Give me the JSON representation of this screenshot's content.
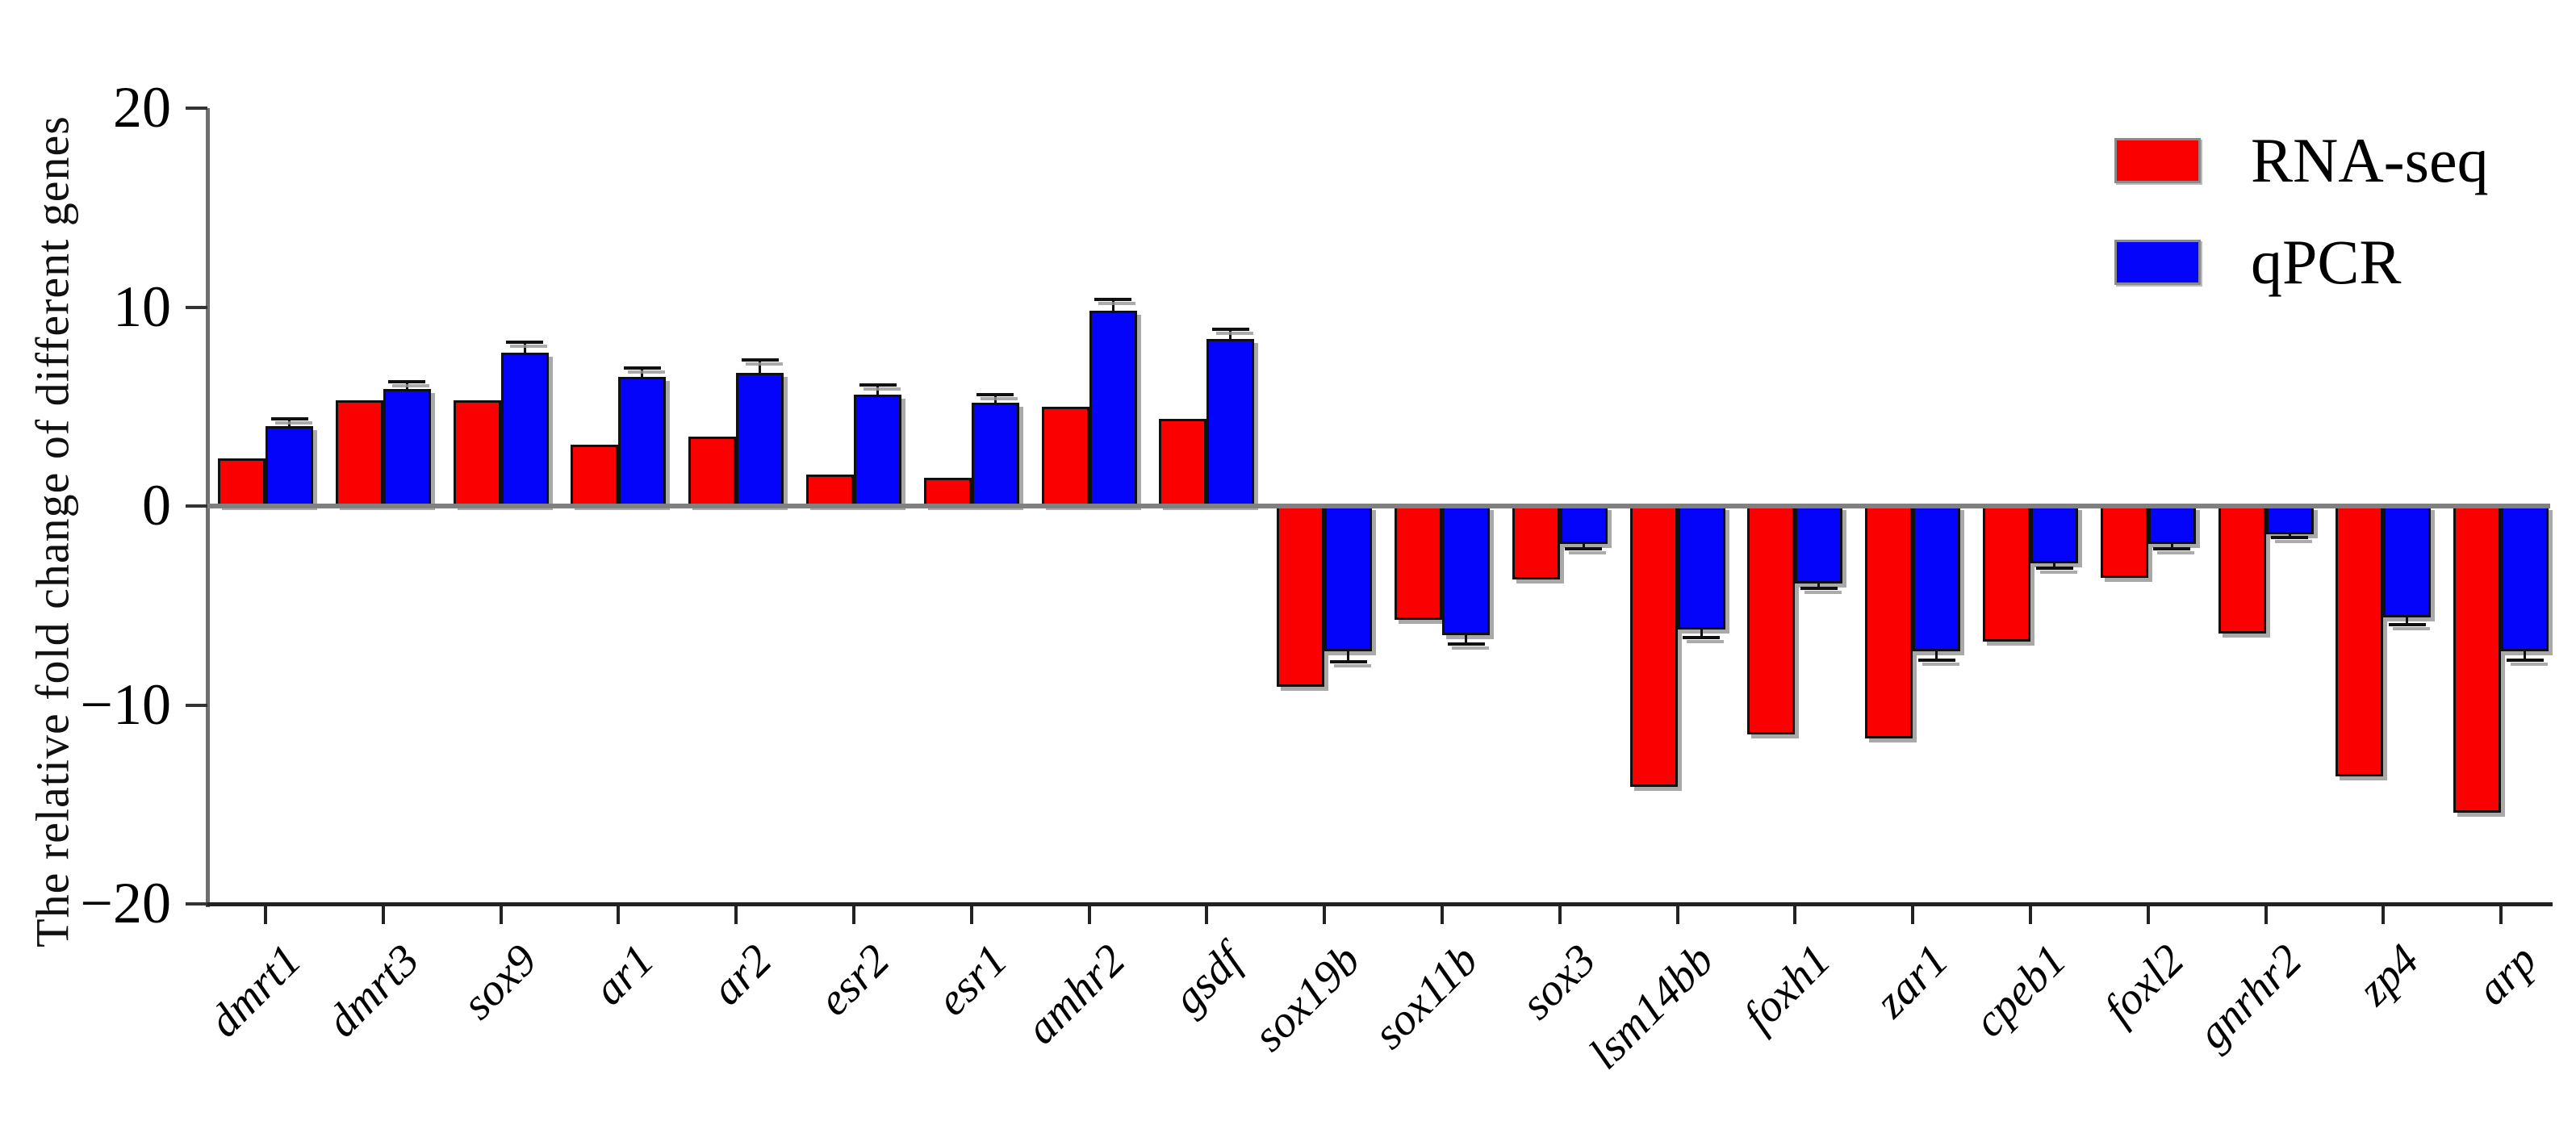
{
  "figure": {
    "background": "#ffffff"
  },
  "chart_data": {
    "type": "bar",
    "title": "",
    "xlabel": "",
    "ylabel": "The relative fold change of different genes",
    "ylim": [
      -20,
      20
    ],
    "yticks": [
      20,
      10,
      0,
      -10,
      -20
    ],
    "ytick_labels": [
      "20",
      "10",
      "0",
      "−10",
      "−20"
    ],
    "grid": false,
    "legend_position": "top-right",
    "categories": [
      "dmrt1",
      "dmrt3",
      "sox9",
      "ar1",
      "ar2",
      "esr2",
      "esr1",
      "amhr2",
      "gsdf",
      "sox19b",
      "sox11b",
      "sox3",
      "lsm14bb",
      "foxh1",
      "zar1",
      "cpeb1",
      "foxl2",
      "gnrhr2",
      "zp4",
      "arp"
    ],
    "series": [
      {
        "name": "RNA-seq",
        "color": "#fb0000",
        "values": [
          2.4,
          5.3,
          5.3,
          3.1,
          3.5,
          1.6,
          1.4,
          5.0,
          4.4,
          -9.1,
          -5.7,
          -3.7,
          -14.1,
          -11.5,
          -11.7,
          -6.8,
          -3.6,
          -6.4,
          -13.6,
          -15.4
        ],
        "errors": [
          0,
          0,
          0,
          0,
          0,
          0,
          0,
          0,
          0,
          0,
          0,
          0,
          0,
          0,
          0,
          0,
          0,
          0,
          0,
          0
        ]
      },
      {
        "name": "qPCR",
        "color": "#0404fb",
        "values": [
          4.0,
          5.9,
          7.7,
          6.5,
          6.7,
          5.6,
          5.2,
          9.8,
          8.4,
          -7.3,
          -6.5,
          -1.9,
          -6.2,
          -3.9,
          -7.3,
          -2.9,
          -1.9,
          -1.4,
          -5.6,
          -7.3
        ],
        "errors": [
          0.3,
          0.25,
          0.45,
          0.35,
          0.55,
          0.4,
          0.3,
          0.5,
          0.4,
          0.45,
          0.35,
          0.15,
          0.35,
          0.15,
          0.35,
          0.15,
          0.15,
          0.1,
          0.3,
          0.35
        ]
      }
    ],
    "colors": {
      "bar_border": "#101010",
      "zero_line": "#808080",
      "y_axis_line": "#6e6e6e",
      "x_axis_line": "#222222",
      "error_bar": "#101010"
    }
  }
}
